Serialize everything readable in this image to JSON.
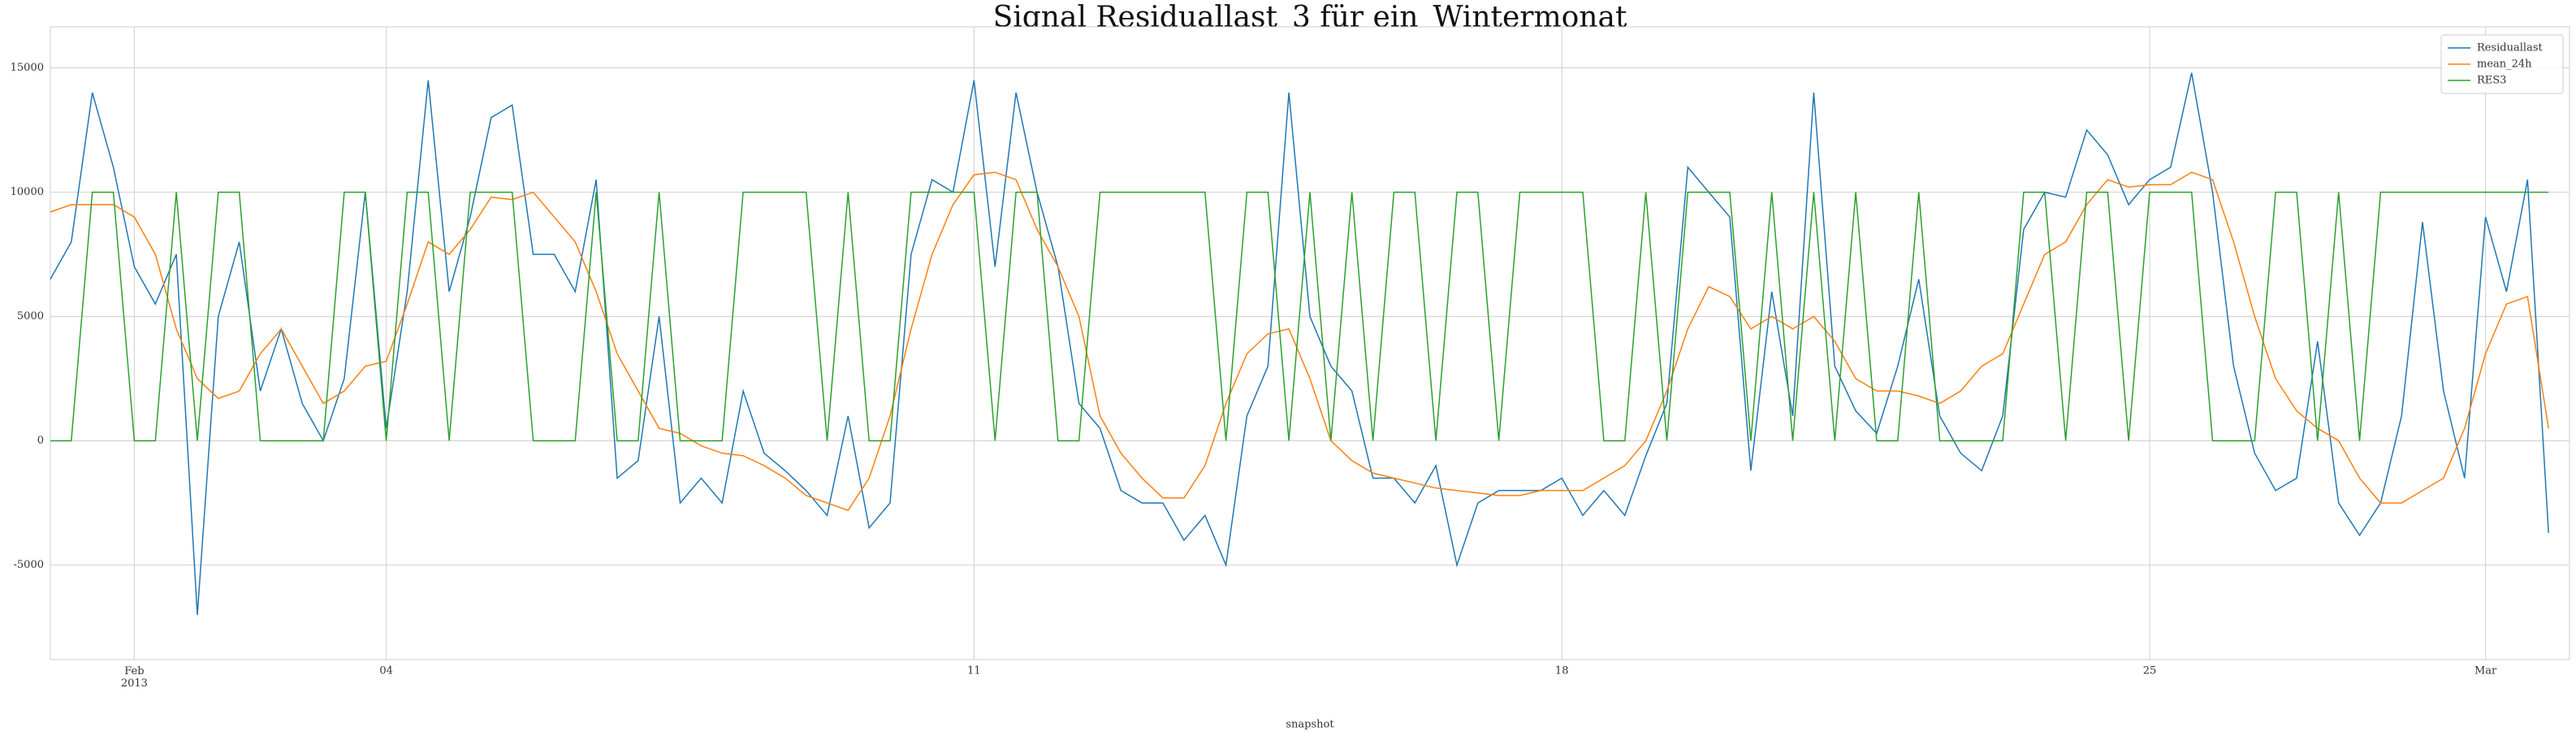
{
  "chart_data": {
    "type": "line",
    "title": "Signal Residuallast_3 für ein_Wintermonat",
    "x_label": "snapshot",
    "x": [
      0,
      0.25,
      0.5,
      0.75,
      1,
      1.25,
      1.5,
      1.75,
      2,
      2.25,
      2.5,
      2.75,
      3,
      3.25,
      3.5,
      3.75,
      4,
      4.25,
      4.5,
      4.75,
      5,
      5.25,
      5.5,
      5.75,
      6,
      6.25,
      6.5,
      6.75,
      7,
      7.25,
      7.5,
      7.75,
      8,
      8.25,
      8.5,
      8.75,
      9,
      9.25,
      9.5,
      9.75,
      10,
      10.25,
      10.5,
      10.75,
      11,
      11.25,
      11.5,
      11.75,
      12,
      12.25,
      12.5,
      12.75,
      13,
      13.25,
      13.5,
      13.75,
      14,
      14.25,
      14.5,
      14.75,
      15,
      15.25,
      15.5,
      15.75,
      16,
      16.25,
      16.5,
      16.75,
      17,
      17.25,
      17.5,
      17.75,
      18,
      18.25,
      18.5,
      18.75,
      19,
      19.25,
      19.5,
      19.75,
      20,
      20.25,
      20.5,
      20.75,
      21,
      21.25,
      21.5,
      21.75,
      22,
      22.25,
      22.5,
      22.75,
      23,
      23.25,
      23.5,
      23.75,
      24,
      24.25,
      24.5,
      24.75,
      25,
      25.25,
      25.5,
      25.75,
      26,
      26.25,
      26.5,
      26.75,
      27,
      27.25,
      27.5,
      27.75,
      28,
      28.25,
      28.5,
      28.75,
      29,
      29.25,
      29.5,
      29.75
    ],
    "series": [
      {
        "name": "Residuallast",
        "color": "#1f77b4",
        "values": [
          6500,
          8000,
          14000,
          11000,
          7000,
          5500,
          7500,
          -7000,
          5000,
          8000,
          2000,
          4500,
          1500,
          0,
          2500,
          10000,
          500,
          6000,
          14500,
          6000,
          9000,
          13000,
          13500,
          7500,
          7500,
          6000,
          10500,
          -1500,
          -800,
          5000,
          -2500,
          -1500,
          -2500,
          2000,
          -500,
          -1200,
          -2000,
          -3000,
          1000,
          -3500,
          -2500,
          7500,
          10500,
          10000,
          14500,
          7000,
          14000,
          10000,
          7000,
          1500,
          500,
          -2000,
          -2500,
          -2500,
          -4000,
          -3000,
          -5000,
          1000,
          3000,
          14000,
          5000,
          3000,
          2000,
          -1500,
          -1500,
          -2500,
          -1000,
          -5000,
          -2500,
          -2000,
          -2000,
          -2000,
          -1500,
          -3000,
          -2000,
          -3000,
          -600,
          1500,
          11000,
          10000,
          9000,
          -1200,
          6000,
          1000,
          14000,
          3000,
          1200,
          300,
          3000,
          6500,
          1000,
          -500,
          -1200,
          1000,
          8500,
          10000,
          9800,
          12500,
          11500,
          9500,
          10500,
          11000,
          14800,
          10000,
          3000,
          -500,
          -2000,
          -1500,
          4000,
          -2500,
          -3800,
          -2500,
          1000,
          8800,
          2000,
          -1500,
          9000,
          6000,
          10500,
          -3700
        ]
      },
      {
        "name": "mean_24h",
        "color": "#ff7f0e",
        "values": [
          9200,
          9500,
          9500,
          9500,
          9000,
          7500,
          4500,
          2500,
          1700,
          2000,
          3500,
          4500,
          3000,
          1500,
          2000,
          3000,
          3200,
          5500,
          8000,
          7500,
          8500,
          9800,
          9700,
          10000,
          9000,
          8000,
          6000,
          3500,
          2000,
          500,
          300,
          -200,
          -500,
          -600,
          -1000,
          -1500,
          -2200,
          -2500,
          -2800,
          -1500,
          1000,
          4500,
          7500,
          9500,
          10700,
          10800,
          10500,
          8500,
          7000,
          5000,
          1000,
          -500,
          -1500,
          -2300,
          -2300,
          -1000,
          1500,
          3500,
          4300,
          4500,
          2500,
          0,
          -800,
          -1300,
          -1500,
          -1700,
          -1900,
          -2000,
          -2100,
          -2200,
          -2200,
          -2000,
          -2000,
          -2000,
          -1500,
          -1000,
          0,
          2000,
          4500,
          6200,
          5800,
          4500,
          5000,
          4500,
          5000,
          4000,
          2500,
          2000,
          2000,
          1800,
          1500,
          2000,
          3000,
          3500,
          5500,
          7500,
          8000,
          9500,
          10500,
          10200,
          10300,
          10300,
          10800,
          10500,
          8000,
          5000,
          2500,
          1200,
          500,
          0,
          -1500,
          -2500,
          -2500,
          -2000,
          -1500,
          500,
          3500,
          5500,
          5800,
          500
        ]
      },
      {
        "name": "RES3",
        "color": "#2ca02c",
        "values": [
          0,
          0,
          10000,
          10000,
          0,
          0,
          10000,
          0,
          10000,
          10000,
          0,
          0,
          0,
          0,
          10000,
          10000,
          0,
          10000,
          10000,
          0,
          10000,
          10000,
          10000,
          0,
          0,
          0,
          10000,
          0,
          0,
          10000,
          0,
          0,
          0,
          10000,
          10000,
          10000,
          10000,
          0,
          10000,
          0,
          0,
          10000,
          10000,
          10000,
          10000,
          0,
          10000,
          10000,
          0,
          0,
          10000,
          10000,
          10000,
          10000,
          10000,
          10000,
          0,
          10000,
          10000,
          0,
          10000,
          0,
          10000,
          0,
          10000,
          10000,
          0,
          10000,
          10000,
          0,
          10000,
          10000,
          10000,
          10000,
          0,
          0,
          10000,
          0,
          10000,
          10000,
          10000,
          0,
          10000,
          0,
          10000,
          0,
          10000,
          0,
          0,
          10000,
          0,
          0,
          0,
          0,
          10000,
          10000,
          0,
          10000,
          10000,
          0,
          10000,
          10000,
          10000,
          0,
          0,
          0,
          10000,
          10000,
          0,
          10000,
          0,
          10000,
          10000,
          10000,
          10000,
          10000,
          10000,
          10000,
          10000,
          10000
        ]
      }
    ],
    "xlim": [
      0,
      30
    ],
    "xticks": [
      {
        "value": 1,
        "label": "Feb\n2013"
      },
      {
        "value": 4,
        "label": "04"
      },
      11,
      18,
      25,
      {
        "value": 29,
        "label": "Mar"
      }
    ],
    "ylim": [
      -8800,
      16650
    ],
    "yticks": [
      -5000,
      0,
      5000,
      10000,
      15000
    ],
    "grid": true,
    "legend": "upper right"
  }
}
